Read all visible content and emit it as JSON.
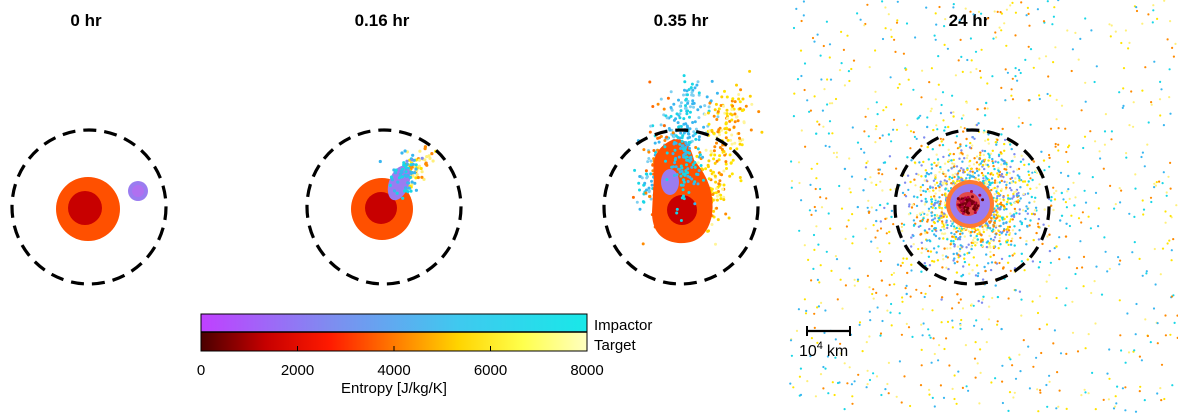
{
  "panels": [
    {
      "id": "t0",
      "title": "0 hr"
    },
    {
      "id": "t016",
      "title": "0.16 hr"
    },
    {
      "id": "t035",
      "title": "0.35 hr"
    },
    {
      "id": "t24",
      "title": "24 hr"
    }
  ],
  "colorbar": {
    "impactor_label": "Impactor",
    "target_label": "Target",
    "impactor_colors": [
      "#c040ff",
      "#7f8cf0",
      "#3fc9ef",
      "#19e8e8"
    ],
    "target_colors": [
      "#4a0000",
      "#c60000",
      "#ff1a00",
      "#ff7a00",
      "#ffd400",
      "#ffff4c",
      "#ffffc0"
    ],
    "ticks": [
      "0",
      "2000",
      "4000",
      "6000",
      "8000"
    ],
    "axis_label": "Entropy [J/kg/K]",
    "range": [
      0,
      8000
    ]
  },
  "scale_bar": {
    "label_base": "10",
    "label_exp": "4",
    "label_unit": "km"
  },
  "palette": {
    "core": "#c80000",
    "mantle": "#ff5000",
    "impactor": "#9a7cf0",
    "blue": "#38b6f0",
    "cyan": "#18d6e6",
    "yellow": "#ffe400",
    "orange": "#ff8a00",
    "dashed": "#000000"
  }
}
